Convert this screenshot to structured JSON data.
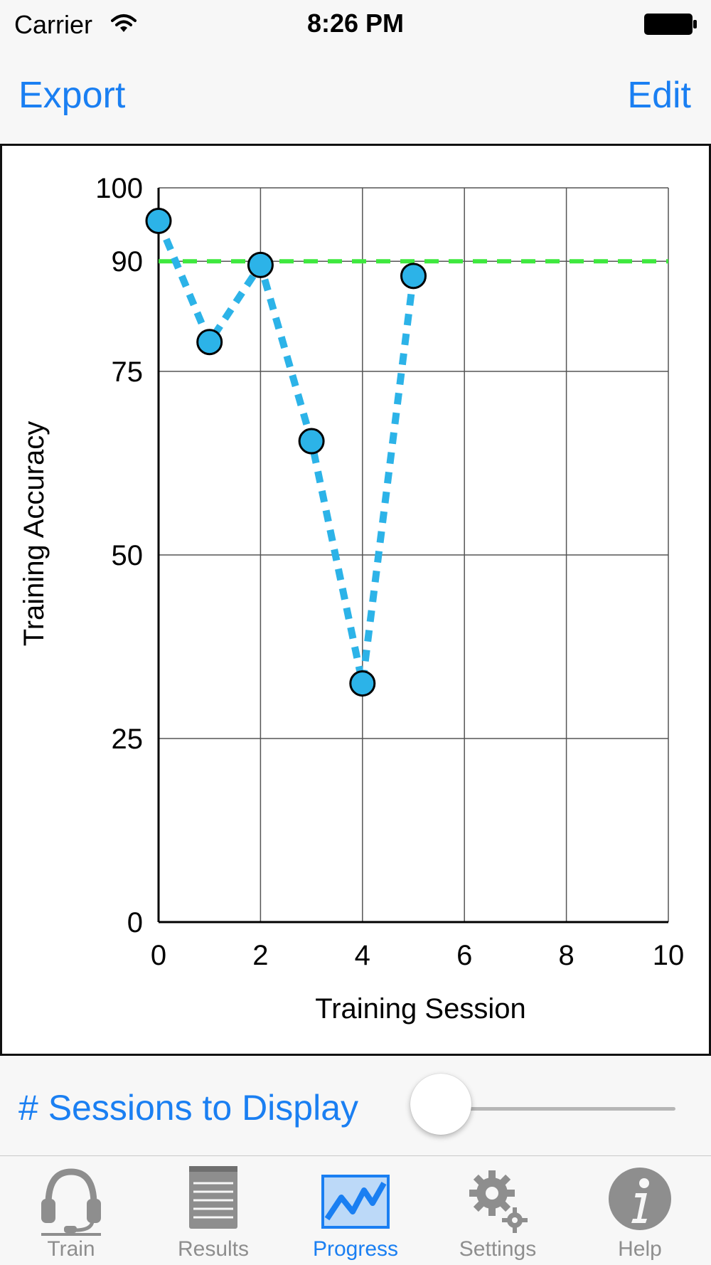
{
  "status_bar": {
    "carrier": "Carrier",
    "time": "8:26 PM"
  },
  "nav": {
    "export_label": "Export",
    "edit_label": "Edit"
  },
  "chart_data": {
    "type": "line",
    "xlabel": "Training Session",
    "ylabel": "Training Accuracy",
    "xlim": [
      0,
      10
    ],
    "ylim": [
      0,
      100
    ],
    "x_ticks": [
      0,
      2,
      4,
      6,
      8,
      10
    ],
    "y_ticks": [
      0,
      25,
      50,
      75,
      90,
      100
    ],
    "grid": true,
    "series": [
      {
        "x": [
          0,
          1,
          2,
          3,
          4,
          5
        ],
        "y": [
          95.5,
          79,
          89.5,
          65.5,
          32.5,
          88
        ],
        "color": "#2cb3e8",
        "line_style": "dotted",
        "marker": "circle"
      }
    ],
    "reference_line": {
      "y": 90,
      "color": "#3ee83e",
      "line_style": "dashed"
    }
  },
  "slider": {
    "label": "# Sessions to Display",
    "value_fraction": 0.0
  },
  "tabs": [
    {
      "label": "Train",
      "icon": "headset-icon",
      "active": false
    },
    {
      "label": "Results",
      "icon": "notepad-icon",
      "active": false
    },
    {
      "label": "Progress",
      "icon": "progress-chart-icon",
      "active": true
    },
    {
      "label": "Settings",
      "icon": "gear-icon",
      "active": false
    },
    {
      "label": "Help",
      "icon": "info-icon",
      "active": false
    }
  ],
  "colors": {
    "accent": "#1a7ff2",
    "inactive_tab": "#8e8e8e"
  }
}
